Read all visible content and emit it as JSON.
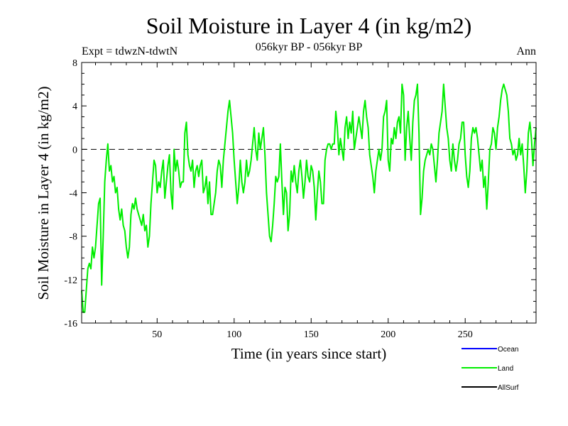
{
  "chart_data": {
    "type": "line",
    "title": "Soil Moisture in Layer 4 (in kg/m2)",
    "subtitle": "056kyr BP - 056kyr BP",
    "experiment_label": "Expt = tdwzN-tdwtN",
    "period_label": "Ann",
    "xlabel": "Time (in years since start)",
    "ylabel": "Soil Moisture in Layer 4 (in kg/m2)",
    "xlim": [
      1,
      296
    ],
    "ylim": [
      -16,
      8
    ],
    "x_ticks": [
      50,
      100,
      150,
      200,
      250
    ],
    "y_ticks": [
      8,
      4,
      0,
      -4,
      -8,
      -12,
      -16
    ],
    "y_tick_labels": [
      "8",
      "4",
      "0",
      "-4",
      "-8",
      "-12",
      "-16"
    ],
    "reference_line_y": 0,
    "legend": [
      {
        "name": "Ocean",
        "color": "#0000ff"
      },
      {
        "name": "Land",
        "color": "#00ee00"
      },
      {
        "name": "AllSurf",
        "color": "#000000"
      }
    ],
    "series": [
      {
        "name": "Land",
        "color": "#00ee00",
        "points": [
          [
            1,
            -13
          ],
          [
            2,
            -15
          ],
          [
            3,
            -15
          ],
          [
            4,
            -13
          ],
          [
            5,
            -11
          ],
          [
            6,
            -10.5
          ],
          [
            7,
            -11
          ],
          [
            8,
            -9
          ],
          [
            9,
            -10
          ],
          [
            10,
            -9
          ],
          [
            11,
            -7
          ],
          [
            12,
            -5
          ],
          [
            13,
            -4.5
          ],
          [
            14,
            -12.5
          ],
          [
            15,
            -8
          ],
          [
            16,
            -3
          ],
          [
            17,
            -1
          ],
          [
            18,
            0.5
          ],
          [
            19,
            -2
          ],
          [
            20,
            -1.5
          ],
          [
            21,
            -3
          ],
          [
            22,
            -2.5
          ],
          [
            23,
            -4
          ],
          [
            24,
            -3.5
          ],
          [
            25,
            -5.5
          ],
          [
            26,
            -6.5
          ],
          [
            27,
            -5.5
          ],
          [
            28,
            -7
          ],
          [
            29,
            -7.5
          ],
          [
            30,
            -9
          ],
          [
            31,
            -10
          ],
          [
            32,
            -9
          ],
          [
            33,
            -6
          ],
          [
            34,
            -5
          ],
          [
            35,
            -5.5
          ],
          [
            36,
            -4.5
          ],
          [
            37,
            -5.5
          ],
          [
            38,
            -6
          ],
          [
            39,
            -6.5
          ],
          [
            40,
            -7
          ],
          [
            41,
            -6
          ],
          [
            42,
            -7.5
          ],
          [
            43,
            -7
          ],
          [
            44,
            -9
          ],
          [
            45,
            -8
          ],
          [
            46,
            -5
          ],
          [
            47,
            -3
          ],
          [
            48,
            -1
          ],
          [
            49,
            -1.5
          ],
          [
            50,
            -4
          ],
          [
            51,
            -3
          ],
          [
            52,
            -3.5
          ],
          [
            53,
            -2
          ],
          [
            54,
            -1
          ],
          [
            55,
            -4.5
          ],
          [
            56,
            -3
          ],
          [
            57,
            -1.5
          ],
          [
            58,
            -0.5
          ],
          [
            59,
            -4
          ],
          [
            60,
            -5.5
          ],
          [
            61,
            0
          ],
          [
            62,
            -2
          ],
          [
            63,
            -1
          ],
          [
            64,
            -2
          ],
          [
            65,
            -3.5
          ],
          [
            66,
            -3
          ],
          [
            67,
            -3
          ],
          [
            68,
            1.5
          ],
          [
            69,
            2.5
          ],
          [
            70,
            -0.5
          ],
          [
            71,
            -1.5
          ],
          [
            72,
            -2
          ],
          [
            73,
            -1
          ],
          [
            74,
            -3.5
          ],
          [
            75,
            -2
          ],
          [
            76,
            -1.5
          ],
          [
            77,
            -2.5
          ],
          [
            78,
            -1.5
          ],
          [
            79,
            -1
          ],
          [
            80,
            -4
          ],
          [
            81,
            -3.5
          ],
          [
            82,
            -2.5
          ],
          [
            83,
            -5
          ],
          [
            84,
            -3
          ],
          [
            85,
            -6
          ],
          [
            86,
            -6
          ],
          [
            87,
            -5
          ],
          [
            88,
            -4
          ],
          [
            89,
            -2
          ],
          [
            90,
            -1
          ],
          [
            91,
            -1.5
          ],
          [
            92,
            -3.5
          ],
          [
            93,
            -1
          ],
          [
            94,
            0.5
          ],
          [
            95,
            2
          ],
          [
            96,
            3.5
          ],
          [
            97,
            4.5
          ],
          [
            98,
            3
          ],
          [
            99,
            1.5
          ],
          [
            100,
            -1
          ],
          [
            101,
            -3
          ],
          [
            102,
            -5
          ],
          [
            103,
            -3.5
          ],
          [
            104,
            -1
          ],
          [
            105,
            -3
          ],
          [
            106,
            -4
          ],
          [
            107,
            -3
          ],
          [
            108,
            -1
          ],
          [
            109,
            -2.5
          ],
          [
            110,
            -2
          ],
          [
            111,
            -1
          ],
          [
            112,
            0.5
          ],
          [
            113,
            2
          ],
          [
            114,
            0
          ],
          [
            115,
            -1
          ],
          [
            116,
            1.5
          ],
          [
            117,
            0
          ],
          [
            118,
            1
          ],
          [
            119,
            2
          ],
          [
            120,
            -0.5
          ],
          [
            121,
            -4
          ],
          [
            122,
            -6
          ],
          [
            123,
            -8
          ],
          [
            124,
            -8.5
          ],
          [
            125,
            -7
          ],
          [
            126,
            -5
          ],
          [
            127,
            -2.5
          ],
          [
            128,
            -3
          ],
          [
            129,
            -2.5
          ],
          [
            130,
            0.5
          ],
          [
            131,
            -3
          ],
          [
            132,
            -6
          ],
          [
            133,
            -3.5
          ],
          [
            134,
            -4
          ],
          [
            135,
            -7.5
          ],
          [
            136,
            -6
          ],
          [
            137,
            -2
          ],
          [
            138,
            -3
          ],
          [
            139,
            -1.5
          ],
          [
            140,
            -3
          ],
          [
            141,
            -4
          ],
          [
            142,
            -2
          ],
          [
            143,
            -1
          ],
          [
            144,
            -2.5
          ],
          [
            145,
            -4.5
          ],
          [
            146,
            -3
          ],
          [
            147,
            -1
          ],
          [
            148,
            -2.5
          ],
          [
            149,
            -3
          ],
          [
            150,
            -1.5
          ],
          [
            151,
            -2
          ],
          [
            152,
            -3.5
          ],
          [
            153,
            -6.5
          ],
          [
            154,
            -4
          ],
          [
            155,
            -2
          ],
          [
            156,
            -3
          ],
          [
            157,
            -5
          ],
          [
            158,
            -5
          ],
          [
            159,
            -1
          ],
          [
            160,
            0
          ],
          [
            161,
            0.5
          ],
          [
            162,
            0.5
          ],
          [
            163,
            0
          ],
          [
            164,
            0.5
          ],
          [
            165,
            0.5
          ],
          [
            166,
            3.5
          ],
          [
            167,
            2
          ],
          [
            168,
            -0.5
          ],
          [
            169,
            1
          ],
          [
            170,
            0
          ],
          [
            171,
            -1
          ],
          [
            172,
            2
          ],
          [
            173,
            3
          ],
          [
            174,
            1
          ],
          [
            175,
            2.5
          ],
          [
            176,
            1.5
          ],
          [
            177,
            3.5
          ],
          [
            178,
            0
          ],
          [
            179,
            1
          ],
          [
            180,
            2
          ],
          [
            181,
            3
          ],
          [
            182,
            2
          ],
          [
            183,
            1
          ],
          [
            184,
            3.5
          ],
          [
            185,
            4.5
          ],
          [
            186,
            3
          ],
          [
            187,
            2
          ],
          [
            188,
            -0.5
          ],
          [
            189,
            -1.5
          ],
          [
            190,
            -2.5
          ],
          [
            191,
            -4
          ],
          [
            192,
            -2
          ],
          [
            193,
            -1
          ],
          [
            194,
            0
          ],
          [
            195,
            -1
          ],
          [
            196,
            0
          ],
          [
            197,
            3
          ],
          [
            198,
            3.5
          ],
          [
            199,
            4.5
          ],
          [
            200,
            -1
          ],
          [
            201,
            -2
          ],
          [
            202,
            1
          ],
          [
            203,
            0.5
          ],
          [
            204,
            2
          ],
          [
            205,
            1
          ],
          [
            206,
            2.5
          ],
          [
            207,
            3
          ],
          [
            208,
            1.5
          ],
          [
            209,
            6
          ],
          [
            210,
            5
          ],
          [
            211,
            -1
          ],
          [
            212,
            2
          ],
          [
            213,
            3.5
          ],
          [
            214,
            1
          ],
          [
            215,
            -1
          ],
          [
            216,
            2.5
          ],
          [
            217,
            4.5
          ],
          [
            218,
            5
          ],
          [
            219,
            6
          ],
          [
            220,
            1.5
          ],
          [
            221,
            -6
          ],
          [
            222,
            -4.5
          ],
          [
            223,
            -2
          ],
          [
            224,
            -1
          ],
          [
            225,
            -0.5
          ],
          [
            226,
            0
          ],
          [
            227,
            -0.5
          ],
          [
            228,
            0.5
          ],
          [
            229,
            0
          ],
          [
            230,
            -1.5
          ],
          [
            231,
            -3
          ],
          [
            232,
            -1
          ],
          [
            233,
            1.5
          ],
          [
            234,
            2.5
          ],
          [
            235,
            3.5
          ],
          [
            236,
            6
          ],
          [
            237,
            4
          ],
          [
            238,
            2
          ],
          [
            239,
            1
          ],
          [
            240,
            -1
          ],
          [
            241,
            -2
          ],
          [
            242,
            0.5
          ],
          [
            243,
            -1
          ],
          [
            244,
            -2
          ],
          [
            245,
            -1
          ],
          [
            246,
            0.5
          ],
          [
            247,
            1
          ],
          [
            248,
            2.5
          ],
          [
            249,
            2.5
          ],
          [
            250,
            -0.5
          ],
          [
            251,
            -2.5
          ],
          [
            252,
            -3.5
          ],
          [
            253,
            -2
          ],
          [
            254,
            1
          ],
          [
            255,
            2
          ],
          [
            256,
            1.5
          ],
          [
            257,
            2
          ],
          [
            258,
            1
          ],
          [
            259,
            -0.5
          ],
          [
            260,
            -2
          ],
          [
            261,
            -1
          ],
          [
            262,
            -3.5
          ],
          [
            263,
            -2.5
          ],
          [
            264,
            -5.5
          ],
          [
            265,
            -3
          ],
          [
            266,
            0
          ],
          [
            267,
            0.5
          ],
          [
            268,
            2
          ],
          [
            269,
            1.5
          ],
          [
            270,
            0
          ],
          [
            271,
            2
          ],
          [
            272,
            3
          ],
          [
            273,
            4.5
          ],
          [
            274,
            5.5
          ],
          [
            275,
            6
          ],
          [
            276,
            5.5
          ],
          [
            277,
            5
          ],
          [
            278,
            3.5
          ],
          [
            279,
            1
          ],
          [
            280,
            0.5
          ],
          [
            281,
            -0.5
          ],
          [
            282,
            0
          ],
          [
            283,
            -1
          ],
          [
            284,
            -0.5
          ],
          [
            285,
            1
          ],
          [
            286,
            -0.5
          ],
          [
            287,
            0.5
          ],
          [
            288,
            -1.5
          ],
          [
            289,
            -4
          ],
          [
            290,
            -2
          ],
          [
            291,
            1.5
          ],
          [
            292,
            2.5
          ],
          [
            293,
            1
          ],
          [
            294,
            -1.5
          ],
          [
            295,
            0.5
          ],
          [
            296,
            2
          ]
        ]
      }
    ]
  }
}
